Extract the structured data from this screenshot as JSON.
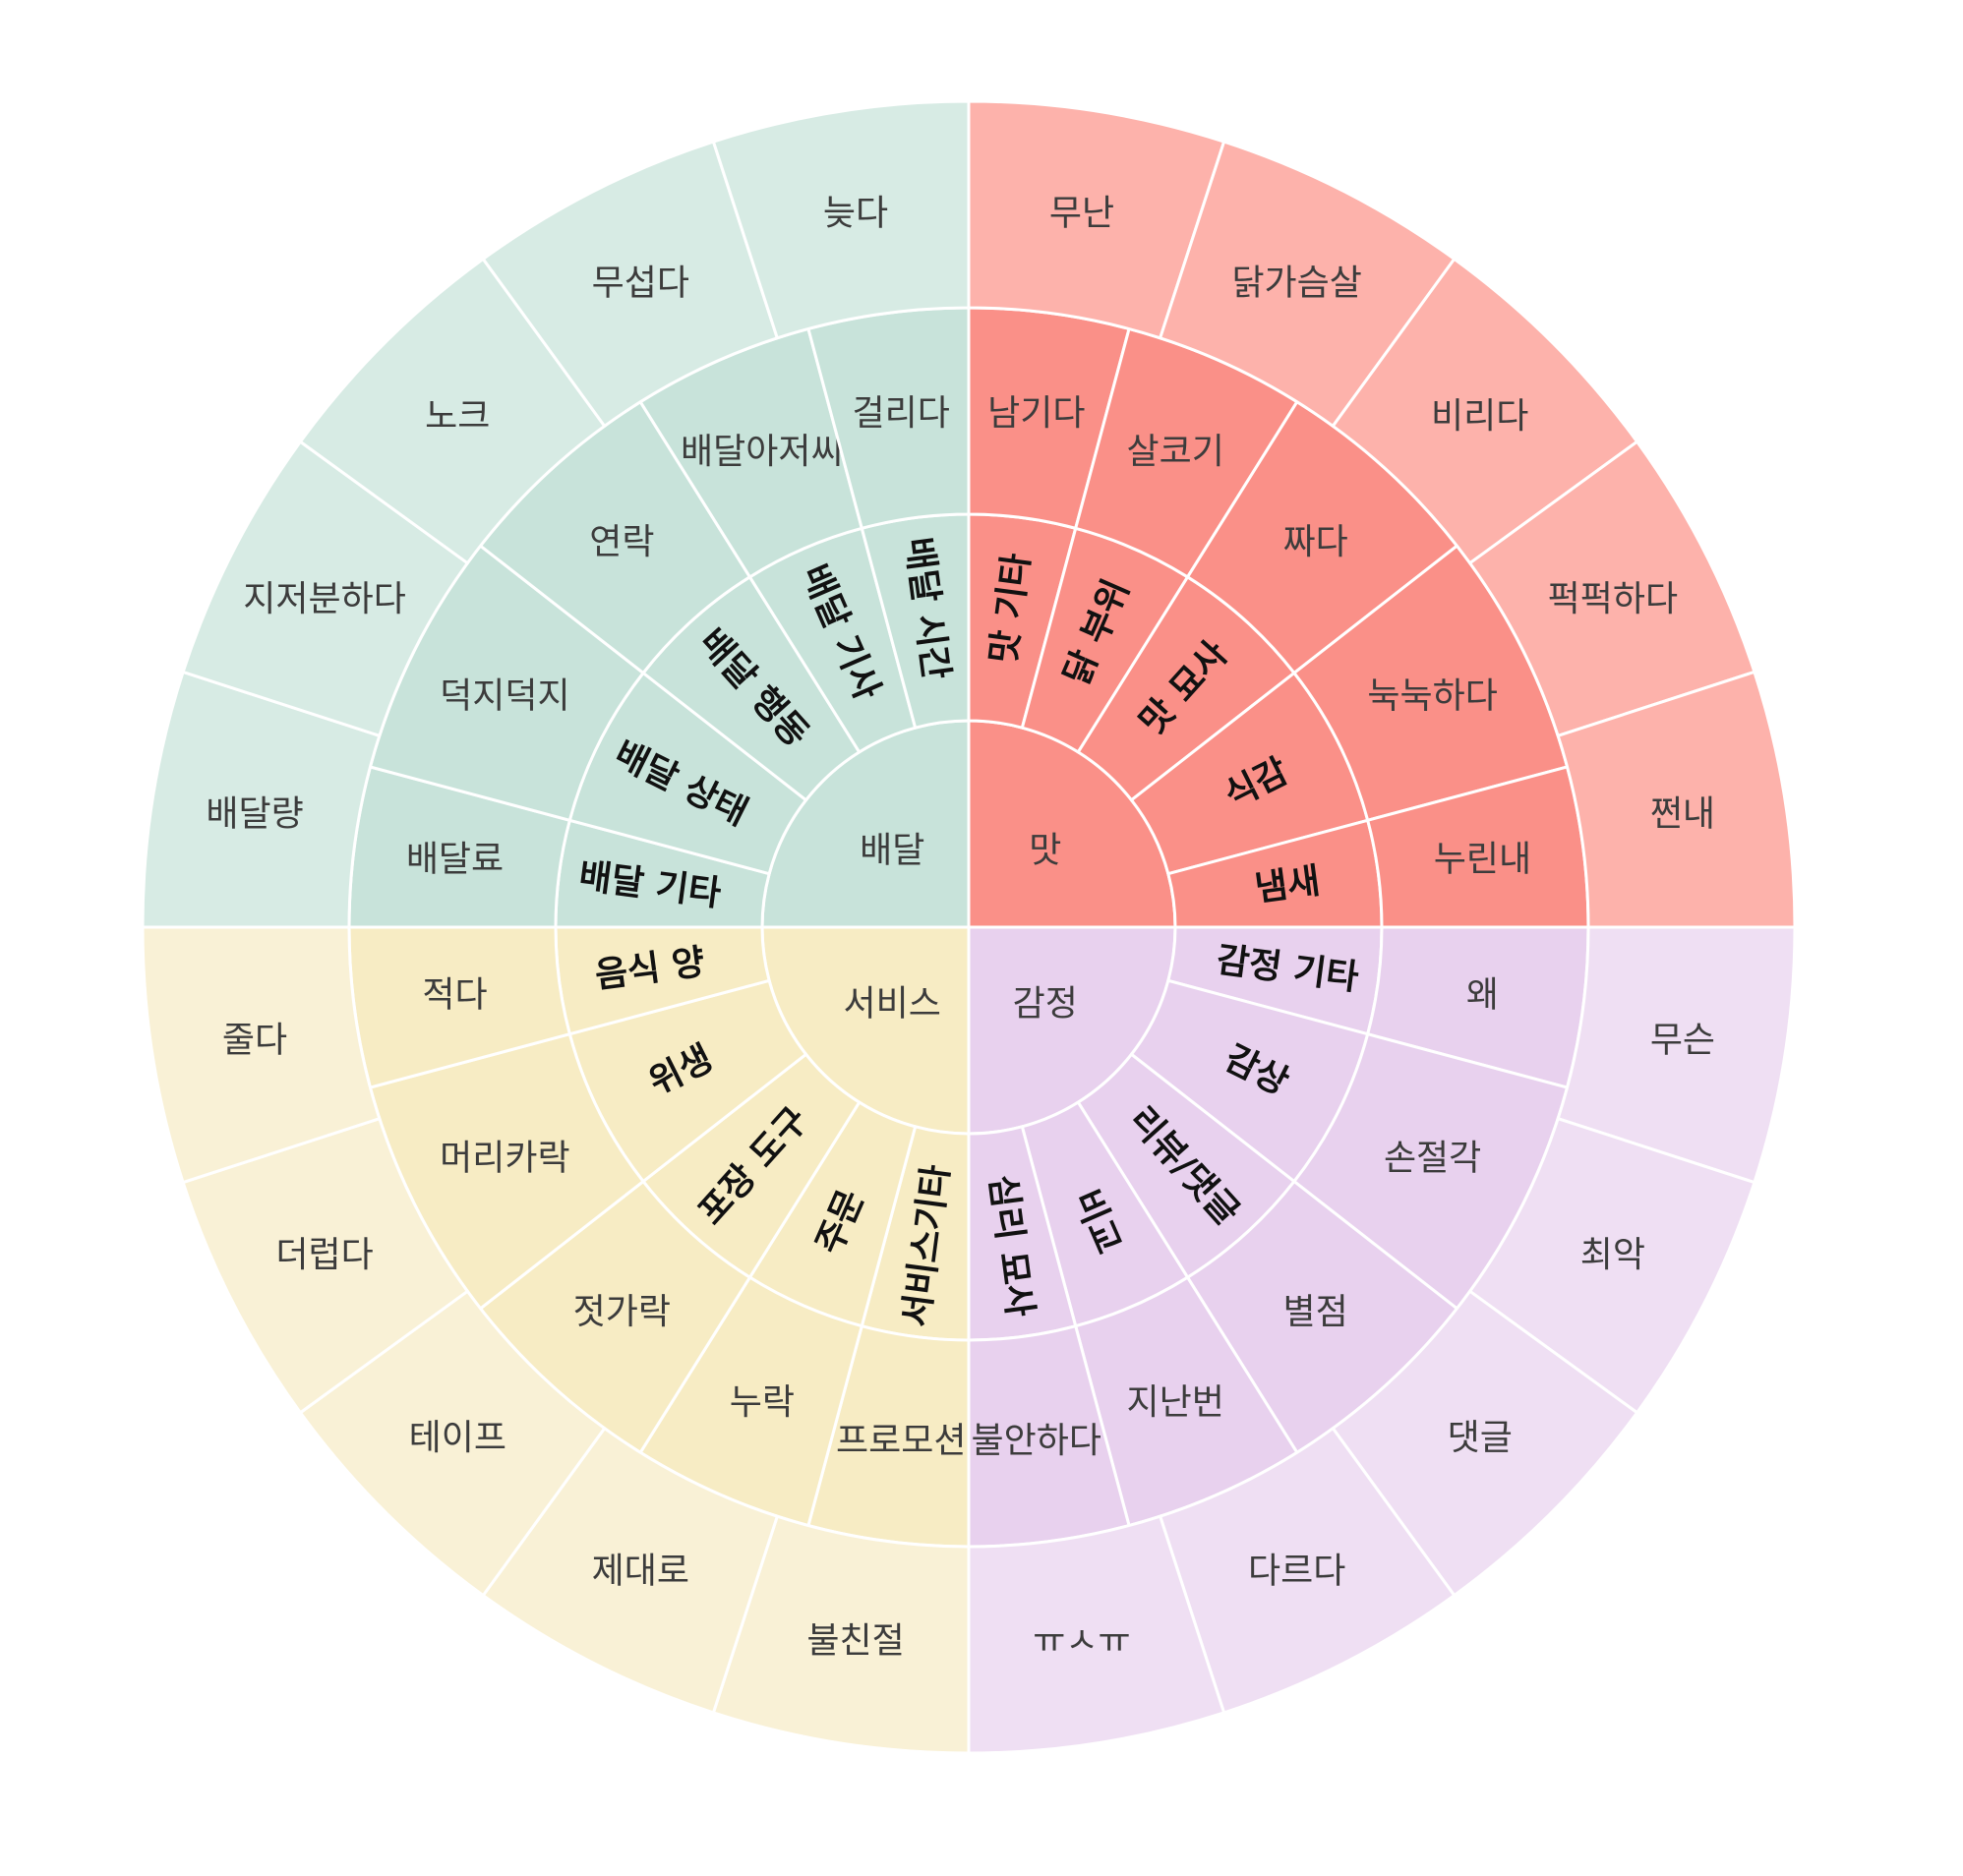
{
  "chart_data": {
    "type": "sunburst",
    "colors": {
      "delivery": [
        "#c8e3da",
        "#c8e3da",
        "#d7ebe4"
      ],
      "taste": [
        "#fa9088",
        "#fa9088",
        "#fdb2ab"
      ],
      "service": [
        "#f7ecc4",
        "#f7ecc4",
        "#f9f1d6"
      ],
      "emotion": [
        "#e8d1ee",
        "#e8d1ee",
        "#efdff3"
      ]
    },
    "quadrants": [
      {
        "key": "taste",
        "name": "맛",
        "start_angle": 0,
        "end_angle": 90,
        "sub": [
          {
            "label": "맛 기타",
            "span": 15
          },
          {
            "label": "닭 부위",
            "span": 17
          },
          {
            "label": "맛 묘사",
            "span": 20
          },
          {
            "label": "식감",
            "span": 23
          },
          {
            "label": "냄새",
            "span": 15
          }
        ],
        "leaf_mid": [
          {
            "label": "남기다",
            "span": 15
          },
          {
            "label": "살코기",
            "span": 17
          },
          {
            "label": "짜다",
            "span": 20
          },
          {
            "label": "눅눅하다",
            "span": 23
          },
          {
            "label": "누린내",
            "span": 15
          }
        ],
        "leaf_outer": [
          {
            "label": "무난",
            "span": 18
          },
          {
            "label": "닭가슴살",
            "span": 18
          },
          {
            "label": "비리다",
            "span": 18
          },
          {
            "label": "퍽퍽하다",
            "span": 18
          },
          {
            "label": "쩐내",
            "span": 18
          }
        ]
      },
      {
        "key": "emotion",
        "name": "감정",
        "start_angle": 90,
        "end_angle": 180,
        "sub": [
          {
            "label": "감정 기타",
            "span": 15
          },
          {
            "label": "감상",
            "span": 23
          },
          {
            "label": "리뷰/댓글",
            "span": 20
          },
          {
            "label": "비교",
            "span": 17
          },
          {
            "label": "심리 묘사",
            "span": 15
          }
        ],
        "leaf_mid": [
          {
            "label": "왜",
            "span": 15
          },
          {
            "label": "손절각",
            "span": 23
          },
          {
            "label": "별점",
            "span": 20
          },
          {
            "label": "지난번",
            "span": 17
          },
          {
            "label": "불안하다",
            "span": 15
          }
        ],
        "leaf_outer": [
          {
            "label": "무슨",
            "span": 18
          },
          {
            "label": "최악",
            "span": 18
          },
          {
            "label": "댓글",
            "span": 18
          },
          {
            "label": "다르다",
            "span": 18
          },
          {
            "label": "ㅠㅅㅠ",
            "span": 18
          }
        ]
      },
      {
        "key": "service",
        "name": "서비스",
        "start_angle": 180,
        "end_angle": 270,
        "sub": [
          {
            "label": "서비스기타",
            "span": 15
          },
          {
            "label": "주문",
            "span": 17
          },
          {
            "label": "포장 도구",
            "span": 20
          },
          {
            "label": "위생",
            "span": 23
          },
          {
            "label": "음식 양",
            "span": 15
          }
        ],
        "leaf_mid": [
          {
            "label": "프로모션",
            "span": 15
          },
          {
            "label": "누락",
            "span": 17
          },
          {
            "label": "젓가락",
            "span": 20
          },
          {
            "label": "머리카락",
            "span": 23
          },
          {
            "label": "적다",
            "span": 15
          }
        ],
        "leaf_outer": [
          {
            "label": "불친절",
            "span": 18
          },
          {
            "label": "제대로",
            "span": 18
          },
          {
            "label": "테이프",
            "span": 18
          },
          {
            "label": "더럽다",
            "span": 18
          },
          {
            "label": "줄다",
            "span": 18
          }
        ]
      },
      {
        "key": "delivery",
        "name": "배달",
        "start_angle": 270,
        "end_angle": 360,
        "sub": [
          {
            "label": "배달 기타",
            "span": 15
          },
          {
            "label": "배달 상태",
            "span": 23
          },
          {
            "label": "배달 행동",
            "span": 20
          },
          {
            "label": "배달 기사",
            "span": 17
          },
          {
            "label": "배달 시간",
            "span": 15
          }
        ],
        "leaf_mid": [
          {
            "label": "배달료",
            "span": 15
          },
          {
            "label": "덕지덕지",
            "span": 23
          },
          {
            "label": "연락",
            "span": 20
          },
          {
            "label": "배달아저씨",
            "span": 17
          },
          {
            "label": "걸리다",
            "span": 15
          }
        ],
        "leaf_outer": [
          {
            "label": "배달량",
            "span": 18
          },
          {
            "label": "지저분하다",
            "span": 18
          },
          {
            "label": "노크",
            "span": 18
          },
          {
            "label": "무섭다",
            "span": 18
          },
          {
            "label": "늦다",
            "span": 18
          }
        ]
      }
    ]
  }
}
